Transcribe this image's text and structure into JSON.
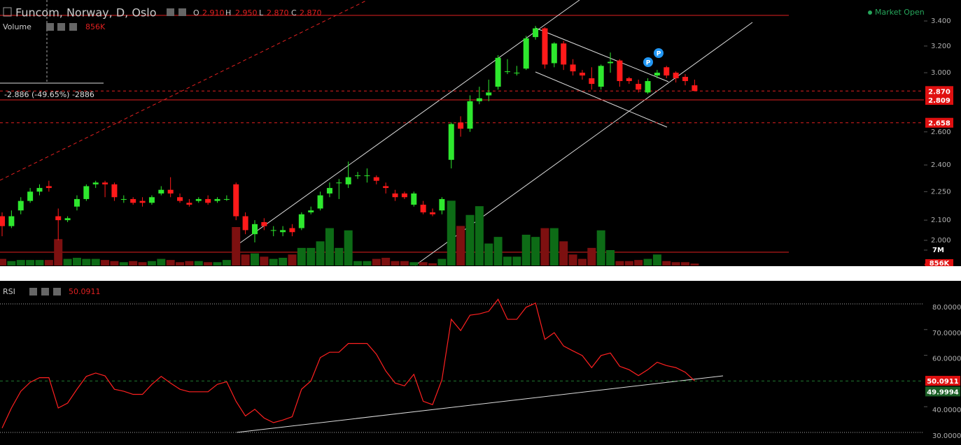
{
  "chart_data": [
    {
      "type": "candlestick",
      "title": "Funcom, Norway, D, Oslo",
      "log_scale": true,
      "grid": false,
      "ohlc_header": [
        "O",
        "2.910",
        "H",
        "2.950",
        "L",
        "2.870",
        "C",
        "2.870"
      ],
      "volume_title": "Volume",
      "status": "Market Open",
      "measure_label": "-2.886 (-49.65%) -2886",
      "annotations": [
        "P",
        "P"
      ],
      "up_color": "#2ee82e",
      "down_color": "#ff1a1a",
      "volume_up_color": "#0d6b16",
      "volume_down_color": "#7d1010",
      "open": [
        2.12,
        2.07,
        2.15,
        2.2,
        2.25,
        2.28,
        2.12,
        2.1,
        2.17,
        2.21,
        2.29,
        2.3,
        2.29,
        2.21,
        2.21,
        2.2,
        2.19,
        2.24,
        2.26,
        2.22,
        2.19,
        2.2,
        2.21,
        2.2,
        2.21,
        2.29,
        2.12,
        2.03,
        2.09,
        2.05,
        2.04,
        2.06,
        2.06,
        2.14,
        2.16,
        2.24,
        2.3,
        2.29,
        2.34,
        2.34,
        2.33,
        2.28,
        2.24,
        2.24,
        2.18,
        2.18,
        2.14,
        2.15,
        2.43,
        2.66,
        2.62,
        2.8,
        2.84,
        2.9,
        3.01,
        3.0,
        3.03,
        3.27,
        3.34,
        3.07,
        3.22,
        3.06,
        3.0,
        2.96,
        2.9,
        3.07,
        3.09,
        2.96,
        2.92,
        2.86,
        2.98,
        3.04,
        3.0,
        2.97,
        2.91
      ],
      "high": [
        2.14,
        2.15,
        2.22,
        2.27,
        2.29,
        2.31,
        2.16,
        2.12,
        2.23,
        2.29,
        2.31,
        2.31,
        2.3,
        2.23,
        2.22,
        2.22,
        2.23,
        2.28,
        2.33,
        2.24,
        2.21,
        2.22,
        2.23,
        2.22,
        2.23,
        2.3,
        2.14,
        2.1,
        2.11,
        2.07,
        2.07,
        2.08,
        2.14,
        2.17,
        2.25,
        2.3,
        2.32,
        2.42,
        2.36,
        2.38,
        2.34,
        2.3,
        2.26,
        2.25,
        2.25,
        2.2,
        2.16,
        2.22,
        2.66,
        2.7,
        2.84,
        2.9,
        2.95,
        3.13,
        3.1,
        3.05,
        3.28,
        3.36,
        3.35,
        3.23,
        3.24,
        3.1,
        3.02,
        3.04,
        3.06,
        3.15,
        3.1,
        2.97,
        2.95,
        2.96,
        3.02,
        3.05,
        3.01,
        2.99,
        2.95
      ],
      "low": [
        2.02,
        2.06,
        2.13,
        2.19,
        2.23,
        2.25,
        2.0,
        2.09,
        2.15,
        2.2,
        2.27,
        2.22,
        2.2,
        2.19,
        2.18,
        2.17,
        2.18,
        2.23,
        2.22,
        2.19,
        2.17,
        2.19,
        2.18,
        2.19,
        2.2,
        2.1,
        2.03,
        1.99,
        2.05,
        2.02,
        2.02,
        2.02,
        2.05,
        2.13,
        2.15,
        2.22,
        2.21,
        2.27,
        2.32,
        2.3,
        2.29,
        2.24,
        2.2,
        2.21,
        2.17,
        2.13,
        2.12,
        2.13,
        2.38,
        2.57,
        2.6,
        2.78,
        2.8,
        2.88,
        2.99,
        2.98,
        3.02,
        3.25,
        3.03,
        3.04,
        3.02,
        2.98,
        2.95,
        2.88,
        2.88,
        3.0,
        2.9,
        2.92,
        2.86,
        2.85,
        2.96,
        2.96,
        2.93,
        2.91,
        2.87
      ],
      "close": [
        2.07,
        2.12,
        2.2,
        2.25,
        2.27,
        2.27,
        2.1,
        2.11,
        2.21,
        2.28,
        2.3,
        2.29,
        2.22,
        2.21,
        2.19,
        2.19,
        2.22,
        2.26,
        2.24,
        2.2,
        2.18,
        2.21,
        2.19,
        2.21,
        2.21,
        2.12,
        2.05,
        2.08,
        2.07,
        2.05,
        2.05,
        2.04,
        2.13,
        2.15,
        2.23,
        2.27,
        2.3,
        2.33,
        2.34,
        2.34,
        2.31,
        2.27,
        2.22,
        2.22,
        2.24,
        2.14,
        2.13,
        2.21,
        2.65,
        2.62,
        2.8,
        2.82,
        2.86,
        3.11,
        3.01,
        3.0,
        3.26,
        3.34,
        3.06,
        3.22,
        3.06,
        3.01,
        2.98,
        2.92,
        3.05,
        3.08,
        2.94,
        2.94,
        2.88,
        2.94,
        3.0,
        2.98,
        2.96,
        2.94,
        2.87
      ],
      "volume": [
        3000000,
        2000000,
        2500000,
        2500000,
        2500000,
        2500000,
        12000000,
        3000000,
        3500000,
        3000000,
        3000000,
        2500000,
        2000000,
        1500000,
        2000000,
        1500000,
        2000000,
        3000000,
        2500000,
        1500000,
        2000000,
        2000000,
        1500000,
        1500000,
        2500000,
        17500000,
        5000000,
        5500000,
        4000000,
        3000000,
        3500000,
        5000000,
        8000000,
        8000000,
        11000000,
        17000000,
        8000000,
        16000000,
        2000000,
        2000000,
        3000000,
        3500000,
        2000000,
        2000000,
        1500000,
        1500000,
        1000000,
        3000000,
        29500000,
        18000000,
        23000000,
        27000000,
        10000000,
        13000000,
        4000000,
        4000000,
        14000000,
        13000000,
        17000000,
        17000000,
        11000000,
        5000000,
        3000000,
        8000000,
        16000000,
        7000000,
        2000000,
        2000000,
        2500000,
        3000000,
        5000000,
        2000000,
        1500000,
        1500000,
        856000
      ],
      "volume_value_labels": {
        "74": "856K"
      },
      "ylim": [
        1.882,
        3.577
      ],
      "yticks": [
        {
          "value": 2,
          "label": "2.000"
        },
        {
          "value": 2.1,
          "label": "2.100"
        },
        {
          "value": 2.25,
          "label": "2.250"
        },
        {
          "value": 2.4,
          "label": "2.400"
        },
        {
          "value": 2.6,
          "label": "2.600"
        },
        {
          "value": 3,
          "label": "3.000"
        },
        {
          "value": 3.2,
          "label": "3.200"
        },
        {
          "value": 3.4,
          "label": "3.400"
        }
      ],
      "y2lim": [
        0,
        7000000
      ],
      "y2ticks": [
        {
          "value": 7000000,
          "label": "7M"
        }
      ],
      "price_lines": [
        {
          "value": 2.87,
          "label": "2.870",
          "style": "dashed"
        },
        {
          "value": 2.809,
          "label": "2.809",
          "style": "solid"
        },
        {
          "value": 2.658,
          "label": "2.658",
          "style": "dashed"
        }
      ]
    },
    {
      "type": "line",
      "title": "RSI",
      "color": "#ff2020",
      "values": [
        31.7,
        39.5,
        46,
        49.5,
        51.3,
        51.3,
        39.5,
        41.4,
        46.8,
        51.8,
        53.1,
        52,
        46.8,
        46,
        44.8,
        44.8,
        48.7,
        51.8,
        49.2,
        46.8,
        45.8,
        45.8,
        45.8,
        48.7,
        49.7,
        42.1,
        36.4,
        39,
        35.6,
        33.8,
        34.8,
        36.1,
        46.8,
        50,
        59.1,
        61.2,
        61.2,
        64.6,
        64.6,
        64.6,
        60.4,
        53.9,
        49.2,
        48.1,
        52.6,
        42.1,
        40.8,
        50.5,
        74,
        69.6,
        75.6,
        76.1,
        77.1,
        81.8,
        74,
        74,
        78.7,
        80.3,
        66.2,
        68.8,
        63.6,
        61.7,
        59.9,
        55.2,
        59.9,
        60.9,
        55.7,
        54.4,
        52.1,
        54.4,
        57.3,
        56,
        55.2,
        53.4,
        50.0911
      ],
      "signal": 49.9994,
      "signal_color": "#1f7a2e",
      "ylim": [
        25.1,
        88.15
      ],
      "yticks": [
        {
          "value": 30,
          "label": "30.0000"
        },
        {
          "value": 40,
          "label": "40.0000"
        },
        {
          "value": 60,
          "label": "60.0000"
        },
        {
          "value": 70,
          "label": "70.0000"
        },
        {
          "value": 80,
          "label": "80.0000"
        }
      ]
    }
  ]
}
